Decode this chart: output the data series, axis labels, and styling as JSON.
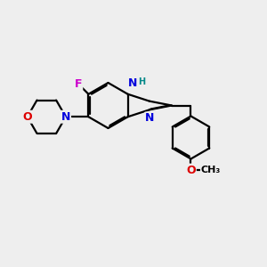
{
  "bg_color": "#eeeeee",
  "bond_color": "#000000",
  "bond_width": 1.6,
  "dbo": 0.055,
  "atom_colors": {
    "F": "#cc00cc",
    "N": "#0000dd",
    "O": "#dd0000",
    "H": "#008888",
    "C": "#000000"
  }
}
